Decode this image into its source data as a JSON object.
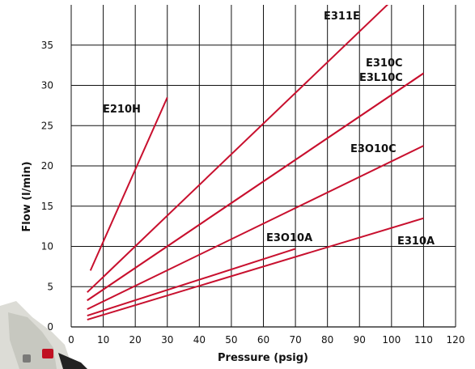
{
  "chart_data": {
    "type": "line",
    "title": "",
    "xlabel": "Pressure (psig)",
    "ylabel": "Flow (l/min)",
    "xlim": [
      0,
      120
    ],
    "ylim": [
      0,
      40
    ],
    "x_ticks": [
      "0",
      "10",
      "20",
      "30",
      "40",
      "50",
      "60",
      "70",
      "80",
      "90",
      "100",
      "110",
      "120"
    ],
    "y_ticks": [
      "0",
      "5",
      "10",
      "15",
      "20",
      "25",
      "30",
      "35"
    ],
    "grid": true,
    "line_color": "#c8102e",
    "series": [
      {
        "name": "E210H",
        "x": [
          6,
          30
        ],
        "y": [
          7.0,
          28.5
        ]
      },
      {
        "name": "E311E",
        "x": [
          5,
          100
        ],
        "y": [
          4.3,
          40.5
        ]
      },
      {
        "name": "E310C",
        "x": [
          5,
          110
        ],
        "y": [
          3.3,
          31.5
        ]
      },
      {
        "name": "E3L10C",
        "x": [
          5,
          110
        ],
        "y": [
          3.3,
          31.5
        ]
      },
      {
        "name": "E3O10C",
        "x": [
          5,
          110
        ],
        "y": [
          2.2,
          22.5
        ]
      },
      {
        "name": "E3O10A",
        "x": [
          5,
          70
        ],
        "y": [
          1.4,
          9.7
        ]
      },
      {
        "name": "E310A",
        "x": [
          5,
          110
        ],
        "y": [
          0.9,
          13.5
        ]
      }
    ]
  }
}
